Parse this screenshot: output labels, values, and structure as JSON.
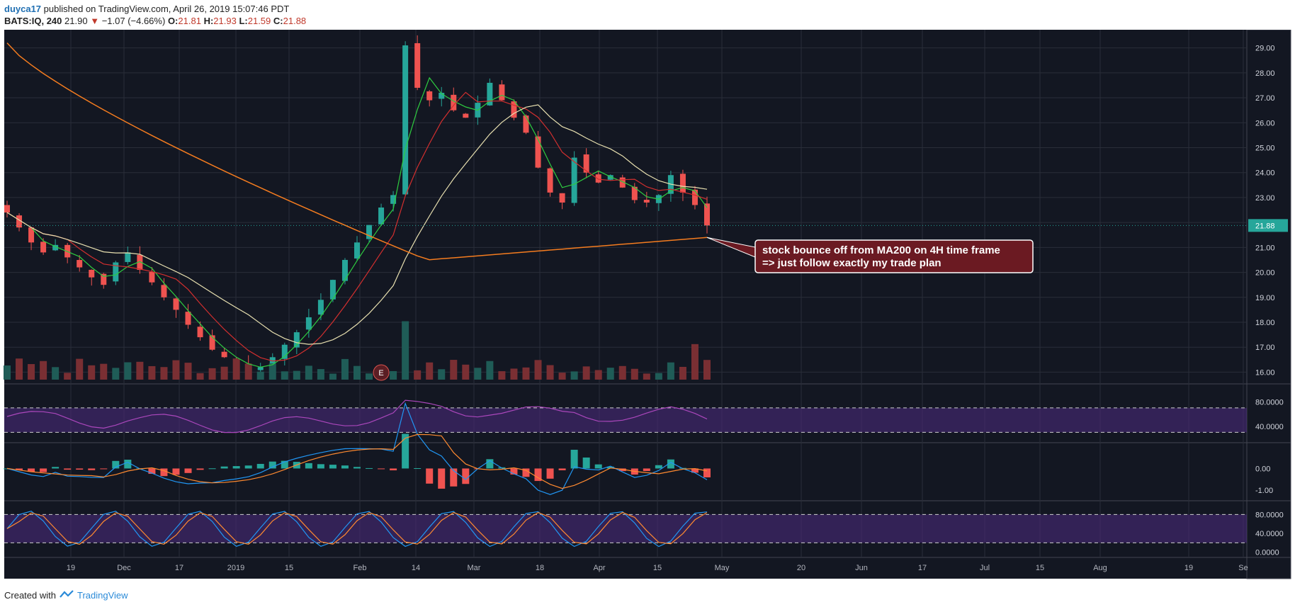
{
  "header": {
    "author": "duyca17",
    "published": "published on TradingView.com, April 26, 2019 15:07:46 PDT",
    "symbol": "BATS:IQ, 240",
    "last": "21.90",
    "change": "−1.07 (−4.66%)",
    "open_label": "O:",
    "open": "21.81",
    "high_label": "H:",
    "high": "21.93",
    "low_label": "L:",
    "low": "21.59",
    "close_label": "C:",
    "close": "21.88"
  },
  "footer": {
    "created_with": "Created with",
    "brand": "TradingView"
  },
  "colors": {
    "background": "#131722",
    "grid": "#2a2e39",
    "up": "#26a69a",
    "down": "#ef5350",
    "ma_fast": "#2ecc40",
    "ma_mid": "#d32f2f",
    "ma_slow": "#e8e0b0",
    "ma200": "#f57c1f",
    "rsi": "#ab47bc",
    "macd": "#2196f3",
    "signal": "#ff8a30",
    "band": "#4a2a7a"
  },
  "chart_data": [
    {
      "type": "candlestick",
      "symbol": "BATS:IQ",
      "interval": "240",
      "y_ticks": [
        "29.00",
        "28.00",
        "27.00",
        "26.00",
        "25.00",
        "24.00",
        "23.00",
        "22.00",
        "21.00",
        "20.00",
        "19.00",
        "18.00",
        "17.00",
        "16.00"
      ],
      "ylim": [
        15.7,
        29.5
      ],
      "last_price_label": "21.88",
      "x_ticks": [
        "19",
        "Dec",
        "17",
        "2019",
        "15",
        "Feb",
        "14",
        "Mar",
        "18",
        "Apr",
        "15",
        "May",
        "20",
        "Jun",
        "17",
        "Jul",
        "15",
        "Aug",
        "19",
        "Se"
      ],
      "closes_approx": [
        22.4,
        21.8,
        21.2,
        20.8,
        21.1,
        20.6,
        20.2,
        19.8,
        19.5,
        20.4,
        20.8,
        20.1,
        19.6,
        19.0,
        18.5,
        17.9,
        17.4,
        16.9,
        16.6,
        16.3,
        16.1,
        16.2,
        16.6,
        17.1,
        17.6,
        18.2,
        18.9,
        19.7,
        20.5,
        21.2,
        21.9,
        22.6,
        23.1,
        29.1,
        27.4,
        26.9,
        27.2,
        26.5,
        26.2,
        26.8,
        27.6,
        26.9,
        26.2,
        25.6,
        24.2,
        23.2,
        22.8,
        24.6,
        24.0,
        23.6,
        23.9,
        23.4,
        22.9,
        22.8,
        23.1,
        23.9,
        23.2,
        22.7,
        21.88
      ],
      "moving_averages": [
        {
          "period_hint": "fast",
          "color": "#2ecc40"
        },
        {
          "period_hint": "mid",
          "color": "#d32f2f"
        },
        {
          "period_hint": "slow",
          "color": "#e8e0b0"
        },
        {
          "period_hint": "MA200",
          "color": "#f57c1f"
        }
      ],
      "annotation": {
        "line1": "stock bounce off from MA200 on 4H time frame",
        "line2": "=> just follow exactly my trade plan"
      },
      "event_marker": "E"
    },
    {
      "type": "line",
      "panel": "oscillator-1",
      "y_ticks": [
        "80.0000",
        "40.0000"
      ],
      "band": [
        30,
        70
      ],
      "ylim": [
        20,
        100
      ]
    },
    {
      "type": "bar",
      "panel": "macd",
      "y_ticks": [
        "0.00",
        "-1.00"
      ],
      "ylim": [
        -1.3,
        1.0
      ]
    },
    {
      "type": "line",
      "panel": "oscillator-2",
      "y_ticks": [
        "80.0000",
        "40.0000",
        "0.0000"
      ],
      "band": [
        20,
        80
      ],
      "ylim": [
        -5,
        100
      ]
    }
  ]
}
